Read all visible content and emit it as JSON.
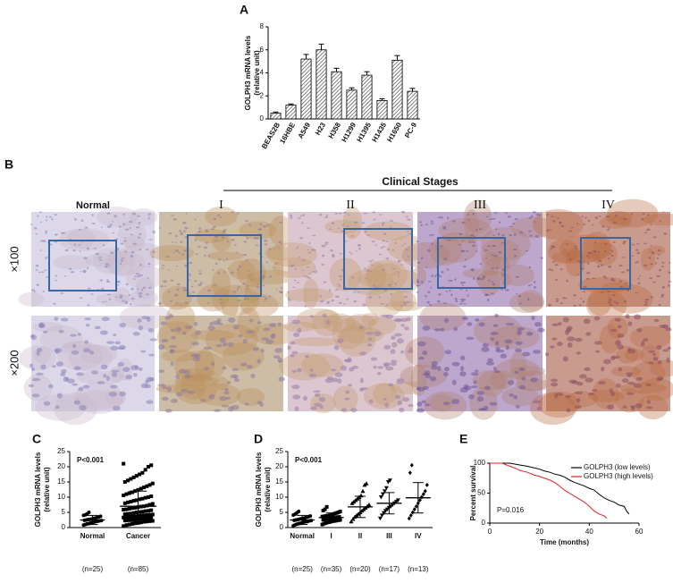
{
  "chart_data": [
    {
      "type": "bar",
      "panel": "A",
      "y_label": [
        "GOLPH3 mRNA levels",
        "(relative unit)"
      ],
      "categories": [
        "BEAS2B",
        "16HBE",
        "A549",
        "H23",
        "H358",
        "H1299",
        "H1395",
        "H1435",
        "H1650",
        "PC-9"
      ],
      "values": [
        0.5,
        1.2,
        5.2,
        6.0,
        4.1,
        2.5,
        3.8,
        1.6,
        5.1,
        2.4
      ],
      "errors": [
        0.1,
        0.1,
        0.4,
        0.5,
        0.3,
        0.2,
        0.3,
        0.15,
        0.4,
        0.25
      ],
      "ylim": [
        0,
        8
      ],
      "yticks": [
        0,
        2,
        4,
        6,
        8
      ]
    },
    {
      "type": "dot",
      "panel": "C",
      "annotation": "P<0.001",
      "y_label": [
        "GOLPH3 mRNA levels",
        "(relative unit)"
      ],
      "categories": [
        "Normal",
        "Cancer"
      ],
      "sample_sizes": [
        "(n=25)",
        "(n=85)"
      ],
      "groups": [
        {
          "marker": "circle",
          "mean": 2.5,
          "sd": 1.5,
          "values": [
            0.8,
            1.0,
            1.2,
            1.3,
            1.5,
            1.6,
            1.8,
            2.0,
            2.1,
            2.2,
            2.3,
            2.4,
            2.5,
            2.6,
            2.7,
            2.8,
            3.0,
            3.1,
            3.3,
            3.5,
            3.7,
            4.0,
            4.2,
            4.5,
            5.0
          ]
        },
        {
          "marker": "square",
          "mean": 7,
          "sd": 5,
          "values": [
            0.5,
            0.8,
            1.0,
            1.2,
            1.4,
            1.5,
            1.7,
            1.9,
            2.0,
            2.1,
            2.2,
            2.3,
            2.4,
            2.5,
            2.6,
            2.7,
            2.8,
            2.9,
            3.0,
            3.1,
            3.2,
            3.3,
            3.4,
            3.5,
            3.6,
            3.7,
            3.8,
            3.9,
            4.0,
            4.1,
            4.2,
            4.3,
            4.4,
            4.5,
            4.6,
            4.8,
            5.0,
            5.1,
            5.2,
            5.4,
            5.5,
            5.7,
            5.9,
            6.0,
            6.2,
            6.4,
            6.5,
            6.7,
            6.9,
            7.0,
            7.2,
            7.5,
            7.8,
            8.0,
            8.3,
            8.5,
            8.8,
            9.0,
            9.3,
            9.5,
            9.8,
            10.0,
            10.3,
            10.6,
            11.0,
            11.3,
            11.6,
            12.0,
            12.4,
            12.8,
            13.2,
            13.6,
            14.0,
            14.5,
            15.0,
            15.5,
            16.0,
            16.5,
            17.0,
            17.5,
            18.0,
            19.0,
            20.0,
            20.5,
            21.0
          ]
        }
      ],
      "ylim": [
        0,
        25
      ],
      "yticks": [
        0,
        5,
        10,
        15,
        20,
        25
      ]
    },
    {
      "type": "dot",
      "panel": "D",
      "annotation": "P<0.001",
      "y_label": [
        "GOLPH3 mRNA levels",
        "(relative unit)"
      ],
      "categories": [
        "Normal",
        "I",
        "II",
        "III",
        "IV"
      ],
      "sample_sizes": [
        "(n=25)",
        "(n=35)",
        "(n=20)",
        "(n=17)",
        "(n=13)"
      ],
      "groups": [
        {
          "marker": "circle",
          "mean": 2.5,
          "sd": 1.5,
          "values": [
            0.6,
            0.9,
            1.1,
            1.3,
            1.4,
            1.6,
            1.8,
            1.9,
            2.0,
            2.2,
            2.3,
            2.4,
            2.5,
            2.6,
            2.8,
            2.9,
            3.0,
            3.2,
            3.4,
            3.6,
            3.8,
            4.1,
            4.4,
            4.8,
            5.3
          ]
        },
        {
          "marker": "square",
          "mean": 3.3,
          "sd": 1.5,
          "values": [
            1.0,
            1.3,
            1.5,
            1.7,
            1.8,
            2.0,
            2.1,
            2.2,
            2.3,
            2.4,
            2.5,
            2.6,
            2.7,
            2.8,
            2.9,
            3.0,
            3.1,
            3.2,
            3.3,
            3.4,
            3.5,
            3.6,
            3.7,
            3.8,
            3.9,
            4.0,
            4.2,
            4.4,
            4.6,
            4.8,
            5.0,
            5.3,
            5.6,
            6.0,
            6.8
          ]
        },
        {
          "marker": "triangle-up",
          "mean": 6.8,
          "sd": 3.5,
          "values": [
            2.0,
            2.8,
            3.5,
            4.0,
            4.5,
            5.0,
            5.5,
            6.0,
            6.5,
            7.0,
            7.5,
            8.0,
            8.5,
            9.0,
            9.5,
            10.0,
            10.5,
            12.0,
            14.0,
            14.5
          ]
        },
        {
          "marker": "triangle-down",
          "mean": 8,
          "sd": 3.5,
          "values": [
            3.0,
            4.0,
            4.8,
            5.5,
            6.0,
            6.5,
            7.0,
            7.5,
            8.0,
            8.5,
            9.0,
            10.0,
            11.0,
            12.0,
            13.0,
            15.0,
            15.5
          ]
        },
        {
          "marker": "diamond",
          "mean": 9.8,
          "sd": 5,
          "values": [
            3.0,
            4.0,
            5.0,
            6.0,
            7.0,
            8.0,
            9.0,
            10.0,
            11.0,
            12.0,
            14.0,
            18.0,
            20.5
          ]
        }
      ],
      "ylim": [
        0,
        25
      ],
      "yticks": [
        0,
        5,
        10,
        15,
        20,
        25
      ]
    },
    {
      "type": "line",
      "panel": "E",
      "annotation": "P=0.016",
      "x_label": "Time (months)",
      "y_label": [
        "Percent survival"
      ],
      "legend": "upper right",
      "series": [
        {
          "name": "GOLPH3 (low levels)",
          "color": "#000000",
          "x": [
            0,
            8,
            12,
            15,
            18,
            20,
            22,
            24,
            26,
            28,
            30,
            32,
            34,
            36,
            38,
            40,
            42,
            44,
            46,
            48,
            50,
            52,
            54,
            55,
            56
          ],
          "values": [
            100,
            100,
            97,
            95,
            92,
            90,
            87,
            85,
            82,
            80,
            77,
            72,
            68,
            65,
            62,
            58,
            55,
            48,
            42,
            38,
            35,
            30,
            28,
            20,
            15
          ]
        },
        {
          "name": "GOLPH3 (high levels)",
          "color": "#e02020",
          "x": [
            0,
            5,
            8,
            10,
            12,
            15,
            18,
            20,
            22,
            24,
            26,
            28,
            30,
            32,
            34,
            36,
            38,
            40,
            42,
            44,
            46,
            47
          ],
          "values": [
            100,
            100,
            95,
            92,
            88,
            85,
            80,
            78,
            75,
            72,
            68,
            62,
            55,
            50,
            45,
            40,
            35,
            28,
            20,
            15,
            12,
            8
          ]
        }
      ],
      "xlim": [
        0,
        60
      ],
      "xticks": [
        0,
        20,
        40,
        60
      ],
      "ylim": [
        0,
        100
      ],
      "yticks": [
        0,
        50,
        100
      ]
    }
  ],
  "panel_b": {
    "label": "B",
    "header": "Clinical Stages",
    "columns": [
      "Normal",
      "I",
      "II",
      "III",
      "IV"
    ],
    "rows": [
      "×100",
      "×200"
    ]
  }
}
